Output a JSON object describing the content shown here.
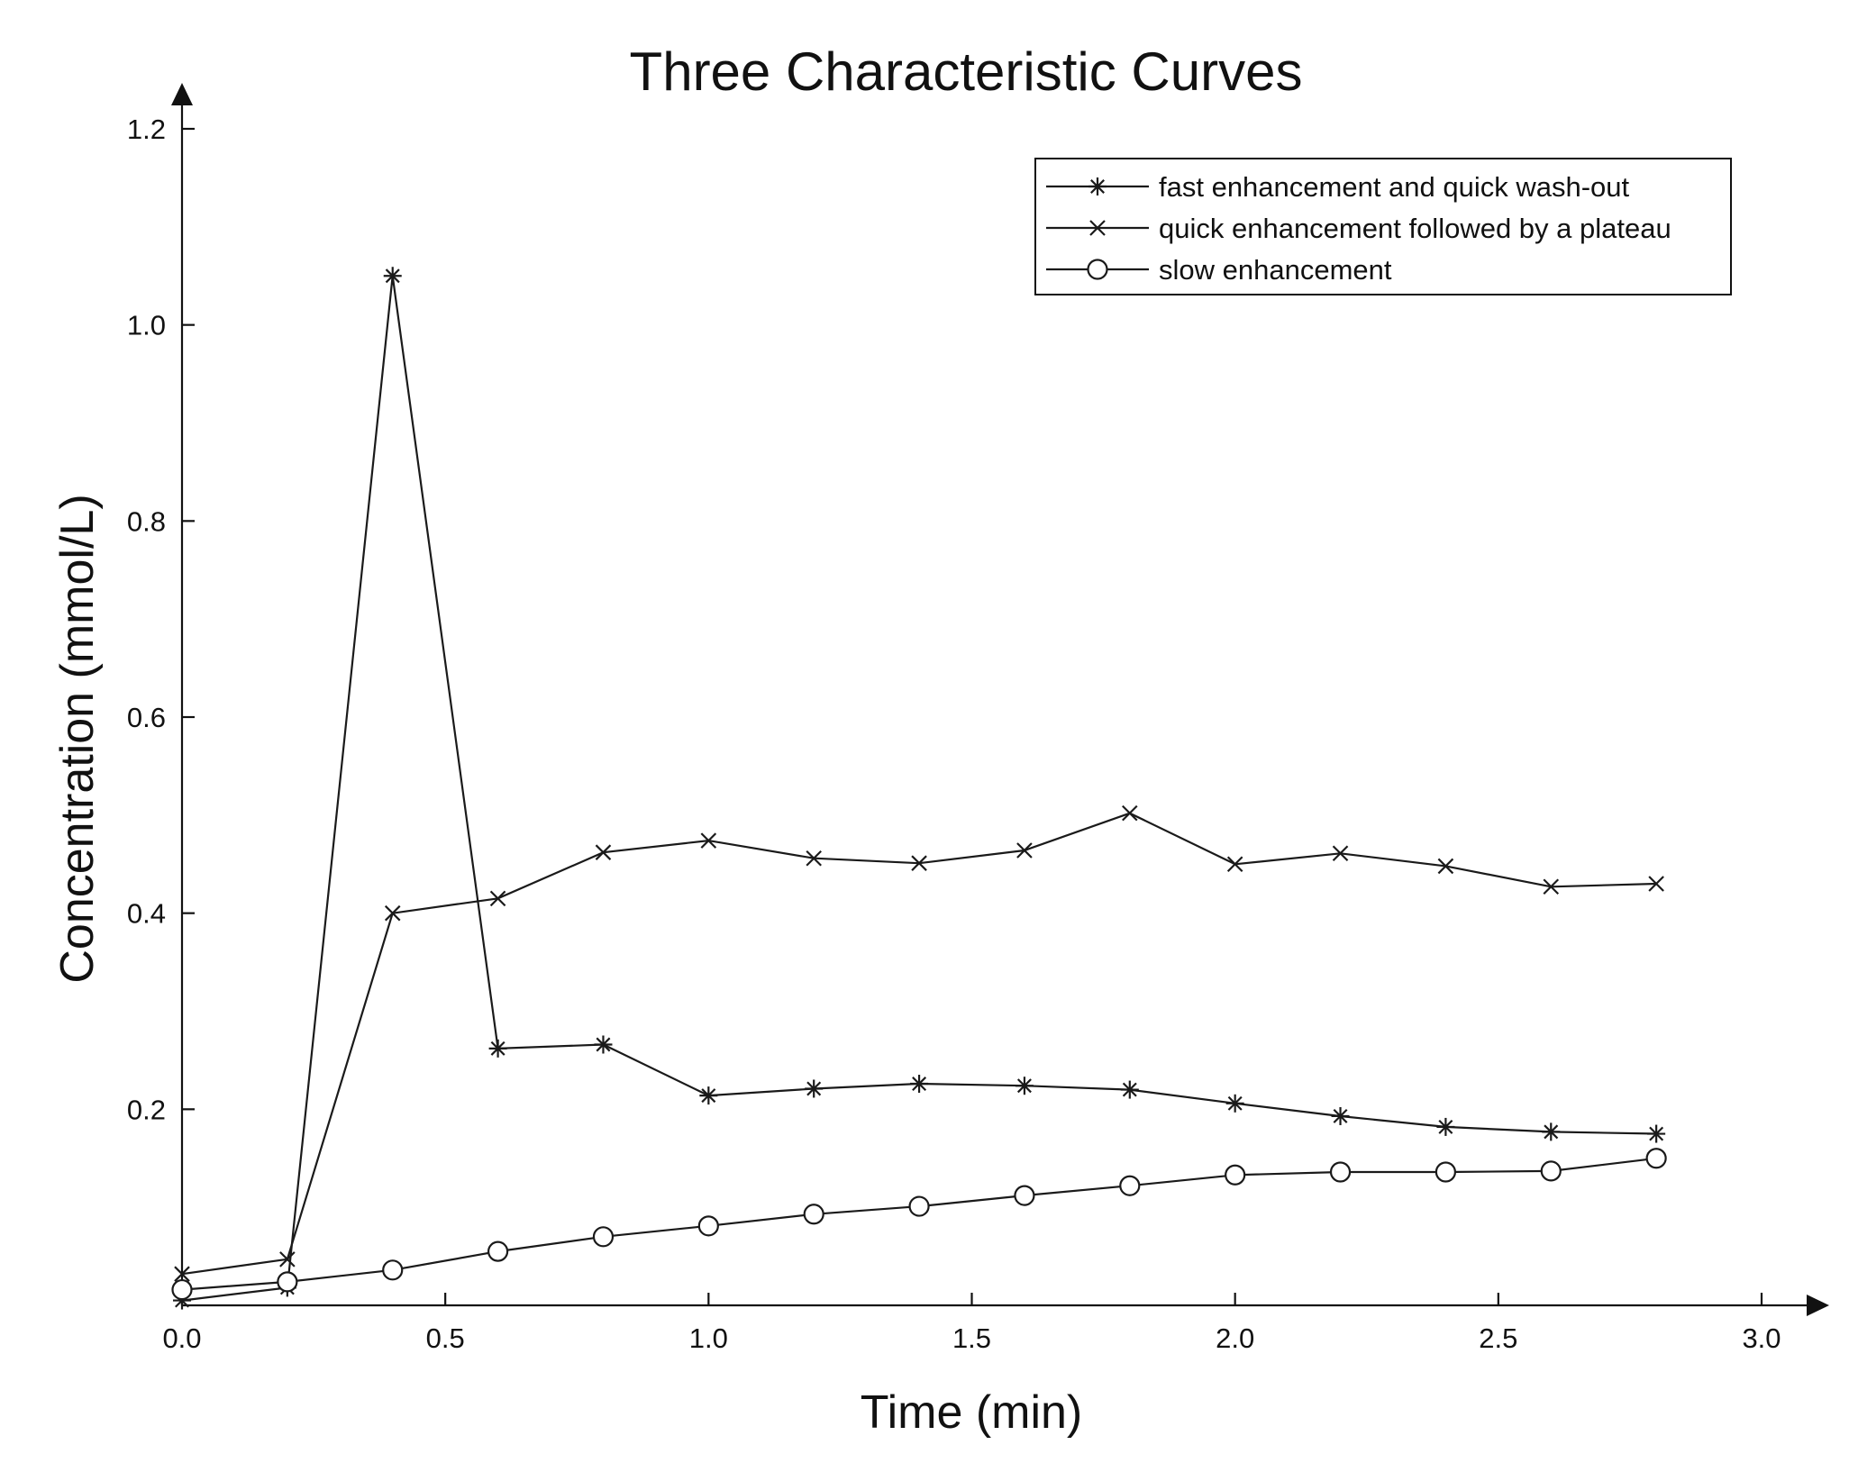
{
  "chart_data": {
    "type": "line",
    "title": "Three Characteristic Curves",
    "xlabel": "Time (min)",
    "ylabel": "Concentration (mmol/L)",
    "xlim": [
      0,
      3.0
    ],
    "ylim": [
      0,
      1.2
    ],
    "xticks": [
      "0.0",
      "0.5",
      "1.0",
      "1.5",
      "2.0",
      "2.5",
      "3.0"
    ],
    "yticks": [
      "0.2",
      "0.4",
      "0.6",
      "0.8",
      "1.0",
      "1.2"
    ],
    "grid": false,
    "legend_position": "top-right",
    "x": [
      0.0,
      0.2,
      0.4,
      0.6,
      0.8,
      1.0,
      1.2,
      1.4,
      1.6,
      1.8,
      2.0,
      2.2,
      2.4,
      2.6,
      2.8
    ],
    "series": [
      {
        "name": "fast enhancement and quick wash-out",
        "marker": "asterisk",
        "values": [
          0.005,
          0.018,
          1.05,
          0.262,
          0.266,
          0.214,
          0.221,
          0.226,
          0.224,
          0.22,
          0.206,
          0.193,
          0.182,
          0.177,
          0.175
        ]
      },
      {
        "name": "quick enhancement followed by a plateau",
        "marker": "x",
        "values": [
          0.032,
          0.047,
          0.4,
          0.415,
          0.462,
          0.474,
          0.456,
          0.451,
          0.464,
          0.502,
          0.45,
          0.461,
          0.448,
          0.427,
          0.43
        ]
      },
      {
        "name": "slow enhancement",
        "marker": "circle",
        "values": [
          0.016,
          0.024,
          0.036,
          0.055,
          0.07,
          0.081,
          0.093,
          0.101,
          0.112,
          0.122,
          0.133,
          0.136,
          0.136,
          0.137,
          0.15
        ]
      }
    ],
    "colors": {
      "line": "#1a1a1a",
      "background": "#ffffff"
    }
  }
}
